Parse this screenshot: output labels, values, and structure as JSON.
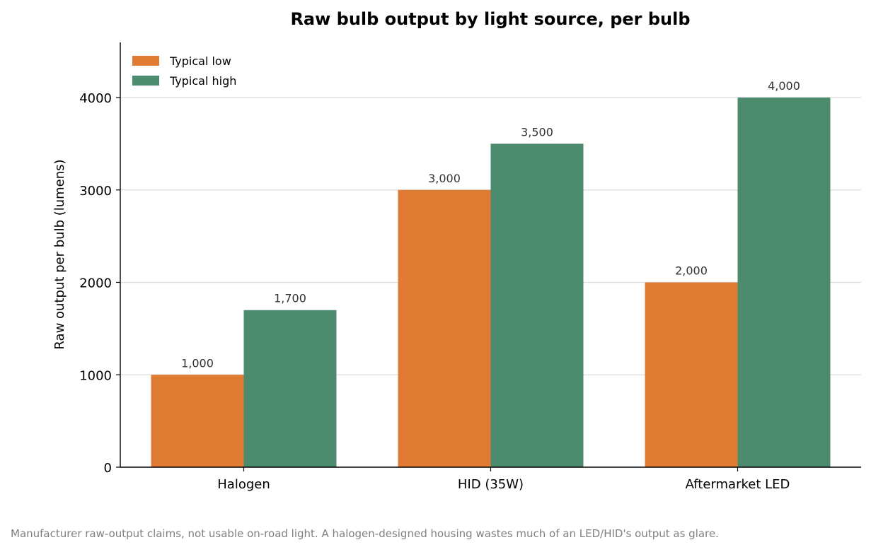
{
  "chart_data": {
    "type": "bar",
    "title": "Raw bulb output by light source, per bulb",
    "xlabel": "",
    "ylabel": "Raw output per bulb (lumens)",
    "categories": [
      "Halogen",
      "HID (35W)",
      "Aftermarket LED"
    ],
    "series": [
      {
        "name": "Typical low",
        "color": "#e07b33",
        "values": [
          1000,
          3000,
          2000
        ],
        "labels": [
          "1,000",
          "3,000",
          "2,000"
        ]
      },
      {
        "name": "Typical high",
        "color": "#4d8b6f",
        "values": [
          1700,
          3500,
          4000
        ],
        "labels": [
          "1,700",
          "3,500",
          "4,000"
        ]
      }
    ],
    "ylim": [
      0,
      4600
    ],
    "yticks": [
      0,
      1000,
      2000,
      3000,
      4000
    ],
    "grid": "horizontal",
    "legend_position": "top-left"
  },
  "footnote": "Manufacturer raw-output claims, not usable on-road light. A halogen-designed housing wastes much of an LED/HID's output as glare."
}
